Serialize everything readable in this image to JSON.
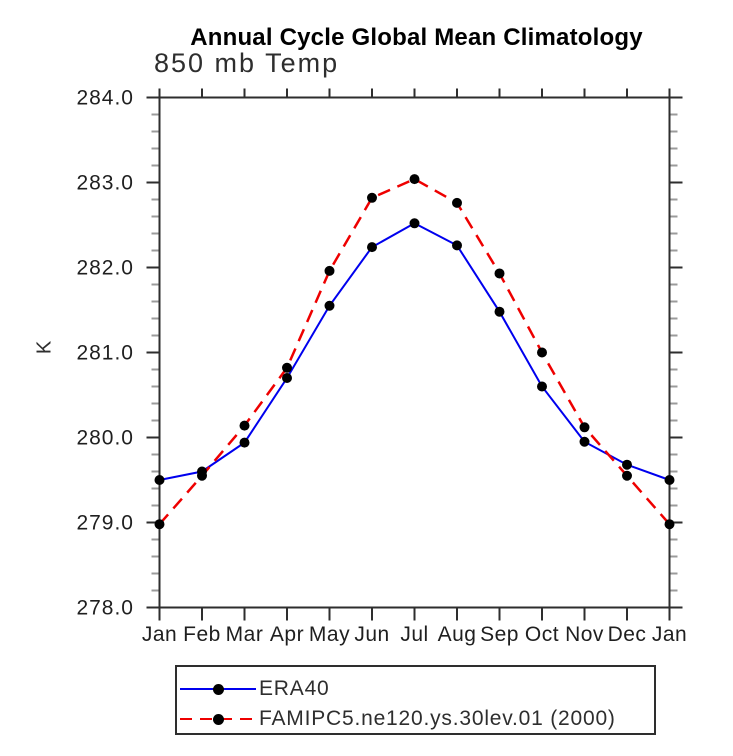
{
  "title": "Annual Cycle Global Mean Climatology",
  "chart_data": {
    "type": "line",
    "title": "Annual Cycle Global Mean Climatology",
    "subtitle": "850 mb Temp",
    "ylabel": "K",
    "xlabel": "",
    "categories": [
      "Jan",
      "Feb",
      "Mar",
      "Apr",
      "May",
      "Jun",
      "Jul",
      "Aug",
      "Sep",
      "Oct",
      "Nov",
      "Dec",
      "Jan"
    ],
    "ylim": [
      278.0,
      284.0
    ],
    "ytick_step": 1.0,
    "ytick_minor_step": 0.2,
    "ytick_labels": [
      "278.0",
      "279.0",
      "280.0",
      "281.0",
      "282.0",
      "283.0",
      "284.0"
    ],
    "grid": false,
    "legend_position": "bottom",
    "marker": {
      "shape": "circle",
      "color": "#000000",
      "radius": 5
    },
    "series": [
      {
        "name": "ERA40",
        "color": "#0000ee",
        "style": "solid",
        "values": [
          279.5,
          279.6,
          279.94,
          280.7,
          281.55,
          282.24,
          282.52,
          282.26,
          281.48,
          280.6,
          279.95,
          279.68,
          279.5
        ]
      },
      {
        "name": "FAMIPC5.ne120.ys.30lev.01 (2000)",
        "color": "#ee0000",
        "style": "dashed",
        "values": [
          278.98,
          279.55,
          280.14,
          280.82,
          281.96,
          282.82,
          283.04,
          282.76,
          281.93,
          281.0,
          280.12,
          279.55,
          278.98
        ]
      }
    ]
  }
}
